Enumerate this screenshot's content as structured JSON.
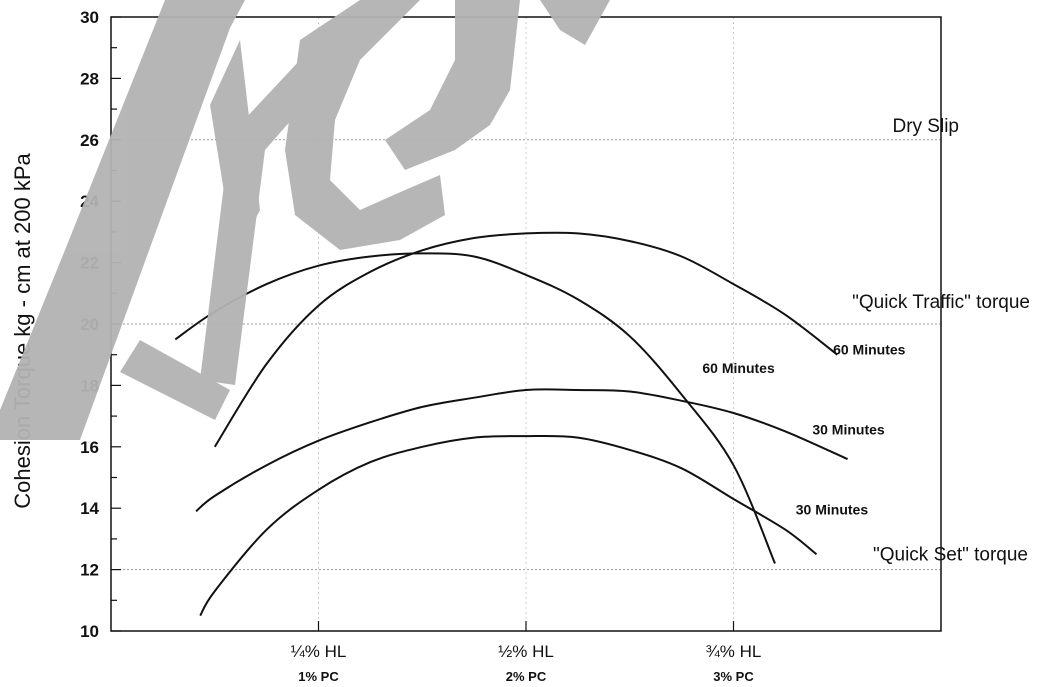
{
  "chart_data": {
    "type": "line",
    "ylabel": "Cohesion Torque kg - cm at 200 kPa",
    "xlabel": "",
    "ylim": [
      10,
      30
    ],
    "y_ticks": [
      10,
      12,
      14,
      16,
      18,
      20,
      22,
      24,
      26,
      28,
      30
    ],
    "x_categories": [
      {
        "main": "¼% HL",
        "sub": "1% PC",
        "x": 1.0
      },
      {
        "main": "½% HL",
        "sub": "2% PC",
        "x": 2.0
      },
      {
        "main": "¾% HL",
        "sub": "3% PC",
        "x": 3.0
      }
    ],
    "xlim": [
      0,
      4
    ],
    "grid": "vertical dotted lines at category ticks",
    "reference_lines": [
      {
        "label": "Dry Slip",
        "y": 26
      },
      {
        "label": "\"Quick Traffic\" torque",
        "y": 20
      },
      {
        "label": "\"Quick Set\" torque",
        "y": 12
      }
    ],
    "series": [
      {
        "name": "60 Minutes",
        "x": [
          0.31,
          0.5,
          0.75,
          1.0,
          1.25,
          1.5,
          1.75,
          2.0,
          2.25,
          2.5,
          2.75,
          3.0,
          3.2
        ],
        "values": [
          19.5,
          20.4,
          21.3,
          21.9,
          22.2,
          22.3,
          22.2,
          21.6,
          20.8,
          19.6,
          17.7,
          15.4,
          12.2
        ]
      },
      {
        "name": "60 Minutes",
        "x": [
          0.5,
          0.75,
          1.0,
          1.25,
          1.5,
          1.75,
          2.0,
          2.25,
          2.5,
          2.75,
          3.0,
          3.25,
          3.5
        ],
        "values": [
          16.0,
          18.7,
          20.6,
          21.7,
          22.4,
          22.8,
          22.95,
          22.95,
          22.7,
          22.2,
          21.3,
          20.3,
          19.0
        ]
      },
      {
        "name": "30 Minutes",
        "x": [
          0.41,
          0.5,
          0.75,
          1.0,
          1.25,
          1.5,
          1.75,
          2.0,
          2.25,
          2.5,
          2.75,
          3.0,
          3.25,
          3.55
        ],
        "values": [
          13.9,
          14.4,
          15.4,
          16.2,
          16.8,
          17.3,
          17.6,
          17.85,
          17.85,
          17.8,
          17.5,
          17.1,
          16.5,
          15.6
        ]
      },
      {
        "name": "30 Minutes",
        "x": [
          0.43,
          0.5,
          0.75,
          1.0,
          1.25,
          1.5,
          1.75,
          2.0,
          2.25,
          2.5,
          2.75,
          3.0,
          3.25,
          3.4
        ],
        "values": [
          10.5,
          11.3,
          13.3,
          14.6,
          15.5,
          16.0,
          16.3,
          16.35,
          16.3,
          15.9,
          15.3,
          14.3,
          13.3,
          12.5
        ]
      }
    ],
    "curve_labels": [
      {
        "text": "60 Minutes",
        "x": 3.48,
        "y": 19.0
      },
      {
        "text": "60 Minutes",
        "x": 2.85,
        "y": 18.4
      },
      {
        "text": "30 Minutes",
        "x": 3.38,
        "y": 16.4
      },
      {
        "text": "30 Minutes",
        "x": 3.3,
        "y": 13.8
      }
    ]
  },
  "watermark": {
    "text": "Arch",
    "color": "#b3b3b3"
  }
}
